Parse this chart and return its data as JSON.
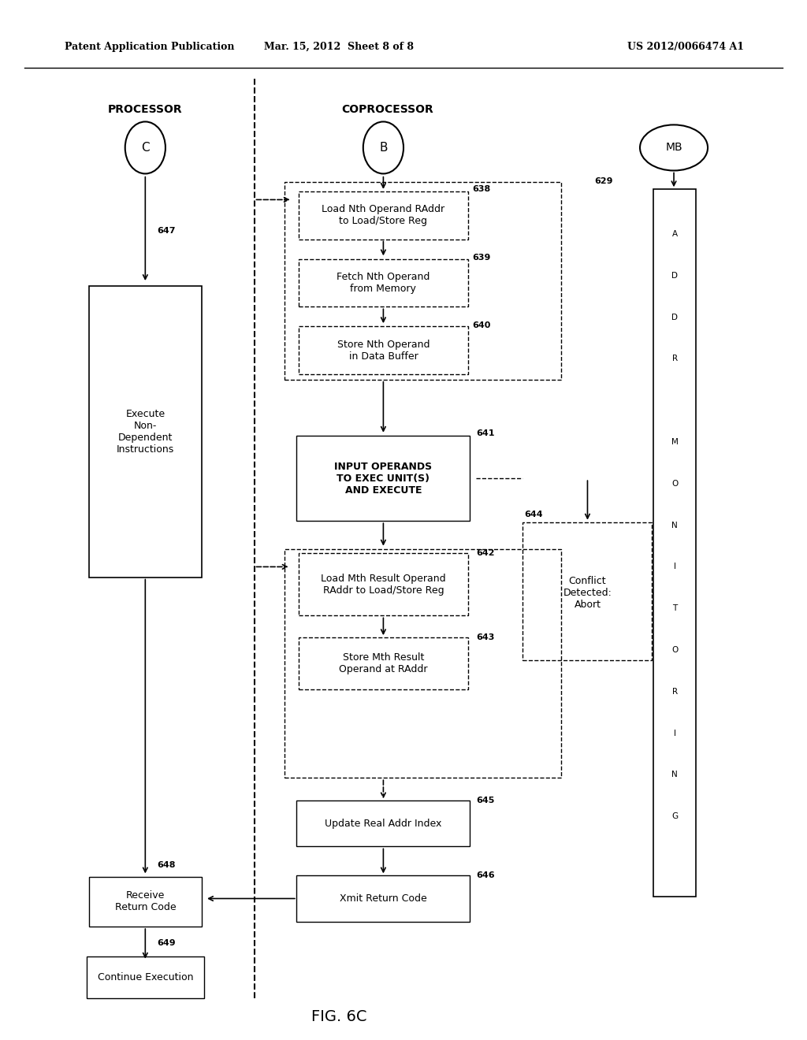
{
  "bg_color": "#ffffff",
  "header_left": "Patent Application Publication",
  "header_center": "Mar. 15, 2012  Sheet 8 of 8",
  "header_right": "US 2012/0066474 A1",
  "fig_label": "FIG. 6C",
  "processor_label": "PROCESSOR",
  "coprocessor_label": "COPROCESSOR"
}
